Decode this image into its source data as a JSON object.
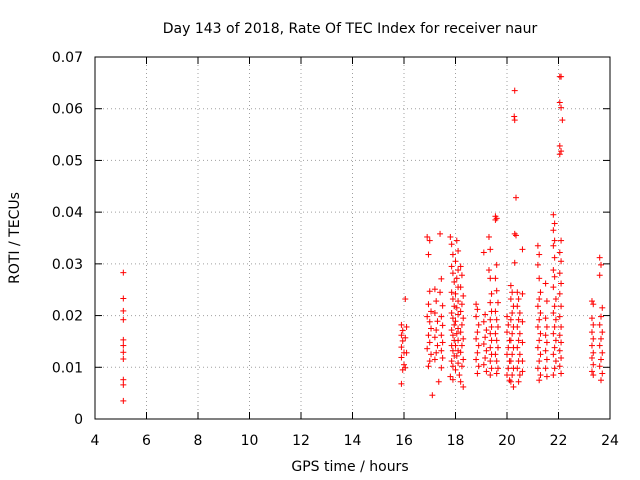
{
  "chart_data": {
    "type": "scatter",
    "title": "Day 143 of 2018, Rate Of TEC Index for receiver naur",
    "xlabel": "GPS time / hours",
    "ylabel": "ROTI / TECUs",
    "xlim": [
      4,
      24
    ],
    "ylim": [
      0,
      0.07
    ],
    "grid": true,
    "marker": "+",
    "marker_color": "#ff0000",
    "xticks": [
      4,
      6,
      8,
      10,
      12,
      14,
      16,
      18,
      20,
      22,
      24
    ],
    "xtick_labels": [
      "4",
      "6",
      "8",
      "10",
      "12",
      "14",
      "16",
      "18",
      "20",
      "22",
      "24"
    ],
    "yticks": [
      0,
      0.01,
      0.02,
      0.03,
      0.04,
      0.05,
      0.06,
      0.07
    ],
    "ytick_labels": [
      "0",
      "0.01",
      "0.02",
      "0.03",
      "0.04",
      "0.05",
      "0.06",
      "0.07"
    ],
    "points": [
      [
        5.1,
        0.0283
      ],
      [
        5.1,
        0.0233
      ],
      [
        5.1,
        0.0209
      ],
      [
        5.1,
        0.0192
      ],
      [
        5.1,
        0.0153
      ],
      [
        5.1,
        0.0142
      ],
      [
        5.1,
        0.0129
      ],
      [
        5.1,
        0.0116
      ],
      [
        5.1,
        0.0076
      ],
      [
        5.1,
        0.0066
      ],
      [
        5.1,
        0.0035
      ],
      [
        15.9,
        0.0182
      ],
      [
        15.95,
        0.0171
      ],
      [
        15.9,
        0.0162
      ],
      [
        15.95,
        0.0151
      ],
      [
        15.9,
        0.0139
      ],
      [
        16.0,
        0.0128
      ],
      [
        15.9,
        0.0119
      ],
      [
        16.0,
        0.0105
      ],
      [
        15.95,
        0.0095
      ],
      [
        15.9,
        0.0068
      ],
      [
        16.05,
        0.0232
      ],
      [
        16.1,
        0.0178
      ],
      [
        16.05,
        0.0157
      ],
      [
        16.1,
        0.0128
      ],
      [
        16.05,
        0.0099
      ],
      [
        16.9,
        0.0352
      ],
      [
        17.0,
        0.0345
      ],
      [
        16.95,
        0.0318
      ],
      [
        17.0,
        0.0247
      ],
      [
        16.95,
        0.0222
      ],
      [
        17.05,
        0.0208
      ],
      [
        16.9,
        0.0198
      ],
      [
        17.0,
        0.0188
      ],
      [
        17.05,
        0.0175
      ],
      [
        16.95,
        0.0162
      ],
      [
        17.0,
        0.0148
      ],
      [
        16.9,
        0.0136
      ],
      [
        17.05,
        0.0125
      ],
      [
        17.0,
        0.0112
      ],
      [
        16.95,
        0.0102
      ],
      [
        17.1,
        0.0046
      ],
      [
        17.2,
        0.0251
      ],
      [
        17.25,
        0.0228
      ],
      [
        17.2,
        0.0205
      ],
      [
        17.3,
        0.0189
      ],
      [
        17.25,
        0.0172
      ],
      [
        17.2,
        0.0158
      ],
      [
        17.3,
        0.0142
      ],
      [
        17.25,
        0.0128
      ],
      [
        17.2,
        0.0115
      ],
      [
        17.35,
        0.0072
      ],
      [
        17.4,
        0.0358
      ],
      [
        17.45,
        0.0271
      ],
      [
        17.4,
        0.0245
      ],
      [
        17.5,
        0.0219
      ],
      [
        17.45,
        0.0198
      ],
      [
        17.5,
        0.0181
      ],
      [
        17.45,
        0.0162
      ],
      [
        17.5,
        0.0148
      ],
      [
        17.45,
        0.0132
      ],
      [
        17.5,
        0.0118
      ],
      [
        17.45,
        0.0099
      ],
      [
        17.8,
        0.0352
      ],
      [
        17.85,
        0.0338
      ],
      [
        17.9,
        0.0318
      ],
      [
        17.85,
        0.0295
      ],
      [
        17.9,
        0.0282
      ],
      [
        17.95,
        0.0265
      ],
      [
        17.85,
        0.0245
      ],
      [
        17.9,
        0.0232
      ],
      [
        17.95,
        0.0218
      ],
      [
        17.85,
        0.0205
      ],
      [
        17.9,
        0.0195
      ],
      [
        17.95,
        0.0182
      ],
      [
        17.85,
        0.0172
      ],
      [
        17.9,
        0.0162
      ],
      [
        17.95,
        0.0152
      ],
      [
        17.85,
        0.0142
      ],
      [
        17.9,
        0.0132
      ],
      [
        17.95,
        0.0122
      ],
      [
        17.85,
        0.0112
      ],
      [
        17.9,
        0.0102
      ],
      [
        17.8,
        0.0082
      ],
      [
        17.9,
        0.0076
      ],
      [
        18.05,
        0.0345
      ],
      [
        18.1,
        0.0325
      ],
      [
        18.0,
        0.0305
      ],
      [
        18.1,
        0.0288
      ],
      [
        18.05,
        0.0272
      ],
      [
        18.1,
        0.0255
      ],
      [
        18.0,
        0.0242
      ],
      [
        18.1,
        0.0228
      ],
      [
        18.05,
        0.0215
      ],
      [
        18.1,
        0.0202
      ],
      [
        18.0,
        0.0189
      ],
      [
        18.1,
        0.0175
      ],
      [
        18.05,
        0.0165
      ],
      [
        18.1,
        0.0152
      ],
      [
        18.0,
        0.0142
      ],
      [
        18.1,
        0.0132
      ],
      [
        18.05,
        0.0122
      ],
      [
        18.1,
        0.0108
      ],
      [
        18.0,
        0.0095
      ],
      [
        18.15,
        0.0085
      ],
      [
        18.2,
        0.0295
      ],
      [
        18.25,
        0.0278
      ],
      [
        18.2,
        0.0255
      ],
      [
        18.3,
        0.0238
      ],
      [
        18.25,
        0.0222
      ],
      [
        18.2,
        0.0208
      ],
      [
        18.3,
        0.0195
      ],
      [
        18.25,
        0.0182
      ],
      [
        18.2,
        0.0168
      ],
      [
        18.3,
        0.0155
      ],
      [
        18.25,
        0.0142
      ],
      [
        18.2,
        0.0129
      ],
      [
        18.3,
        0.0115
      ],
      [
        18.25,
        0.0102
      ],
      [
        18.2,
        0.0072
      ],
      [
        18.3,
        0.0062
      ],
      [
        18.8,
        0.0222
      ],
      [
        18.85,
        0.0212
      ],
      [
        18.8,
        0.0198
      ],
      [
        18.9,
        0.0182
      ],
      [
        18.85,
        0.0168
      ],
      [
        18.8,
        0.0155
      ],
      [
        18.9,
        0.0142
      ],
      [
        18.85,
        0.0128
      ],
      [
        18.8,
        0.0115
      ],
      [
        18.9,
        0.0102
      ],
      [
        18.85,
        0.0088
      ],
      [
        19.1,
        0.0322
      ],
      [
        19.15,
        0.0202
      ],
      [
        19.1,
        0.0188
      ],
      [
        19.2,
        0.0172
      ],
      [
        19.15,
        0.0158
      ],
      [
        19.1,
        0.0145
      ],
      [
        19.2,
        0.0132
      ],
      [
        19.15,
        0.0118
      ],
      [
        19.1,
        0.0105
      ],
      [
        19.2,
        0.0092
      ],
      [
        19.3,
        0.0352
      ],
      [
        19.35,
        0.0328
      ],
      [
        19.3,
        0.0288
      ],
      [
        19.35,
        0.0272
      ],
      [
        19.4,
        0.0242
      ],
      [
        19.35,
        0.0225
      ],
      [
        19.4,
        0.0208
      ],
      [
        19.35,
        0.0192
      ],
      [
        19.4,
        0.0178
      ],
      [
        19.35,
        0.0165
      ],
      [
        19.4,
        0.0152
      ],
      [
        19.35,
        0.0138
      ],
      [
        19.4,
        0.0125
      ],
      [
        19.35,
        0.0112
      ],
      [
        19.4,
        0.0098
      ],
      [
        19.35,
        0.0085
      ],
      [
        19.55,
        0.0392
      ],
      [
        19.6,
        0.0388
      ],
      [
        19.55,
        0.0385
      ],
      [
        19.6,
        0.0298
      ],
      [
        19.55,
        0.0272
      ],
      [
        19.6,
        0.0248
      ],
      [
        19.65,
        0.0225
      ],
      [
        19.55,
        0.0208
      ],
      [
        19.6,
        0.0192
      ],
      [
        19.65,
        0.0178
      ],
      [
        19.55,
        0.0165
      ],
      [
        19.6,
        0.0152
      ],
      [
        19.65,
        0.0138
      ],
      [
        19.55,
        0.0125
      ],
      [
        19.6,
        0.0112
      ],
      [
        19.65,
        0.0098
      ],
      [
        19.6,
        0.0088
      ],
      [
        20.0,
        0.0198
      ],
      [
        20.05,
        0.0182
      ],
      [
        20.0,
        0.0168
      ],
      [
        20.1,
        0.0152
      ],
      [
        20.05,
        0.0138
      ],
      [
        20.0,
        0.0125
      ],
      [
        20.1,
        0.0112
      ],
      [
        20.05,
        0.0098
      ],
      [
        20.0,
        0.0085
      ],
      [
        20.1,
        0.0075
      ],
      [
        20.15,
        0.0258
      ],
      [
        20.2,
        0.0245
      ],
      [
        20.15,
        0.0232
      ],
      [
        20.25,
        0.0218
      ],
      [
        20.2,
        0.0205
      ],
      [
        20.15,
        0.0192
      ],
      [
        20.25,
        0.0178
      ],
      [
        20.2,
        0.0165
      ],
      [
        20.15,
        0.0152
      ],
      [
        20.25,
        0.0138
      ],
      [
        20.2,
        0.0125
      ],
      [
        20.15,
        0.0112
      ],
      [
        20.25,
        0.0098
      ],
      [
        20.2,
        0.0085
      ],
      [
        20.15,
        0.0072
      ],
      [
        20.25,
        0.0062
      ],
      [
        20.3,
        0.0635
      ],
      [
        20.28,
        0.0585
      ],
      [
        20.3,
        0.0578
      ],
      [
        20.35,
        0.0428
      ],
      [
        20.3,
        0.0358
      ],
      [
        20.35,
        0.0355
      ],
      [
        20.3,
        0.0302
      ],
      [
        20.4,
        0.0245
      ],
      [
        20.45,
        0.0232
      ],
      [
        20.4,
        0.0218
      ],
      [
        20.5,
        0.0205
      ],
      [
        20.45,
        0.0192
      ],
      [
        20.4,
        0.0178
      ],
      [
        20.5,
        0.0165
      ],
      [
        20.45,
        0.0152
      ],
      [
        20.4,
        0.0138
      ],
      [
        20.5,
        0.0125
      ],
      [
        20.45,
        0.0112
      ],
      [
        20.4,
        0.0098
      ],
      [
        20.5,
        0.0085
      ],
      [
        20.45,
        0.0072
      ],
      [
        20.6,
        0.0328
      ],
      [
        20.6,
        0.0242
      ],
      [
        20.6,
        0.0188
      ],
      [
        20.6,
        0.0148
      ],
      [
        20.6,
        0.0112
      ],
      [
        20.6,
        0.0092
      ],
      [
        21.2,
        0.0335
      ],
      [
        21.25,
        0.0318
      ],
      [
        21.2,
        0.0298
      ],
      [
        21.25,
        0.0272
      ],
      [
        21.3,
        0.0245
      ],
      [
        21.25,
        0.0232
      ],
      [
        21.2,
        0.0218
      ],
      [
        21.3,
        0.0205
      ],
      [
        21.25,
        0.0192
      ],
      [
        21.2,
        0.0178
      ],
      [
        21.3,
        0.0165
      ],
      [
        21.25,
        0.0152
      ],
      [
        21.2,
        0.0138
      ],
      [
        21.3,
        0.0125
      ],
      [
        21.25,
        0.0112
      ],
      [
        21.2,
        0.0098
      ],
      [
        21.3,
        0.0085
      ],
      [
        21.25,
        0.0075
      ],
      [
        21.5,
        0.0262
      ],
      [
        21.55,
        0.0228
      ],
      [
        21.5,
        0.0195
      ],
      [
        21.55,
        0.0178
      ],
      [
        21.5,
        0.0162
      ],
      [
        21.55,
        0.0148
      ],
      [
        21.5,
        0.0132
      ],
      [
        21.55,
        0.0115
      ],
      [
        21.5,
        0.0098
      ],
      [
        21.55,
        0.0082
      ],
      [
        21.8,
        0.0395
      ],
      [
        21.85,
        0.0378
      ],
      [
        21.8,
        0.0365
      ],
      [
        21.85,
        0.0345
      ],
      [
        21.8,
        0.0335
      ],
      [
        21.85,
        0.0312
      ],
      [
        21.8,
        0.0288
      ],
      [
        21.85,
        0.0275
      ],
      [
        21.8,
        0.0255
      ],
      [
        21.9,
        0.0232
      ],
      [
        21.85,
        0.0218
      ],
      [
        21.8,
        0.0205
      ],
      [
        21.9,
        0.0192
      ],
      [
        21.85,
        0.0178
      ],
      [
        21.8,
        0.0165
      ],
      [
        21.9,
        0.0152
      ],
      [
        21.85,
        0.0138
      ],
      [
        21.8,
        0.0125
      ],
      [
        21.9,
        0.0112
      ],
      [
        21.85,
        0.0098
      ],
      [
        21.8,
        0.0085
      ],
      [
        22.05,
        0.0662
      ],
      [
        22.1,
        0.0662
      ],
      [
        22.05,
        0.0612
      ],
      [
        22.1,
        0.0602
      ],
      [
        22.15,
        0.0578
      ],
      [
        22.05,
        0.0528
      ],
      [
        22.1,
        0.0518
      ],
      [
        22.05,
        0.0512
      ],
      [
        22.1,
        0.0345
      ],
      [
        22.05,
        0.0322
      ],
      [
        22.1,
        0.0305
      ],
      [
        22.05,
        0.0282
      ],
      [
        22.1,
        0.0262
      ],
      [
        22.05,
        0.0242
      ],
      [
        22.1,
        0.0218
      ],
      [
        22.05,
        0.0198
      ],
      [
        22.1,
        0.0178
      ],
      [
        22.05,
        0.0162
      ],
      [
        22.1,
        0.0148
      ],
      [
        22.05,
        0.0132
      ],
      [
        22.1,
        0.0118
      ],
      [
        22.05,
        0.0102
      ],
      [
        22.1,
        0.0088
      ],
      [
        23.3,
        0.0228
      ],
      [
        23.35,
        0.0222
      ],
      [
        23.3,
        0.0195
      ],
      [
        23.35,
        0.0182
      ],
      [
        23.3,
        0.0168
      ],
      [
        23.35,
        0.0155
      ],
      [
        23.3,
        0.0142
      ],
      [
        23.35,
        0.0128
      ],
      [
        23.3,
        0.0118
      ],
      [
        23.35,
        0.0105
      ],
      [
        23.3,
        0.0092
      ],
      [
        23.35,
        0.0085
      ],
      [
        23.6,
        0.0312
      ],
      [
        23.65,
        0.0298
      ],
      [
        23.6,
        0.0278
      ],
      [
        23.7,
        0.0215
      ],
      [
        23.65,
        0.0198
      ],
      [
        23.6,
        0.0182
      ],
      [
        23.7,
        0.0168
      ],
      [
        23.65,
        0.0155
      ],
      [
        23.6,
        0.0142
      ],
      [
        23.7,
        0.0128
      ],
      [
        23.65,
        0.0115
      ],
      [
        23.6,
        0.0102
      ],
      [
        23.7,
        0.0088
      ],
      [
        23.65,
        0.0075
      ]
    ]
  }
}
